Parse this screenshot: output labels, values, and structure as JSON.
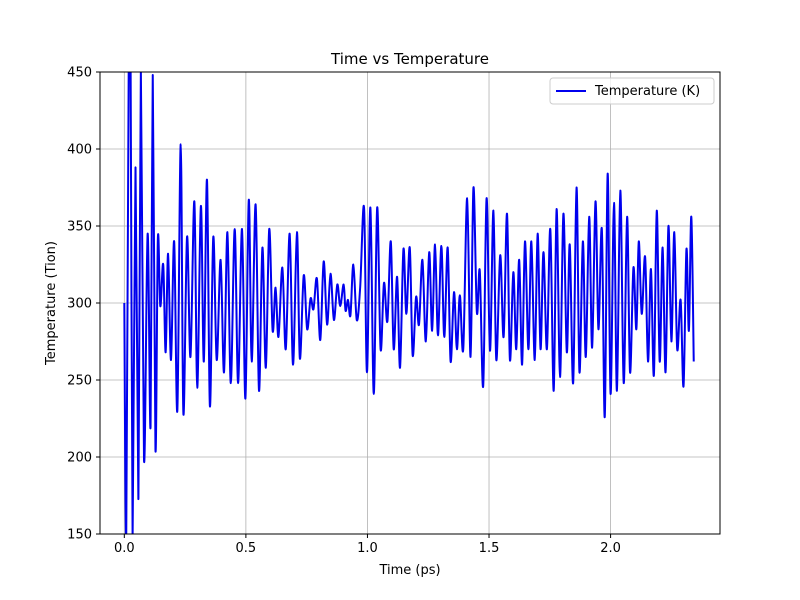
{
  "chart_data": {
    "type": "line",
    "title": "Time vs Temperature",
    "xlabel": "Time (ps)",
    "ylabel": "Temperature (Tion)",
    "xlim": [
      -0.1,
      2.45
    ],
    "ylim": [
      150,
      450
    ],
    "xticks": [
      0.0,
      0.5,
      1.0,
      1.5,
      2.0
    ],
    "xtick_labels": [
      "0.0",
      "0.5",
      "1.0",
      "1.5",
      "2.0"
    ],
    "yticks": [
      150,
      200,
      250,
      300,
      350,
      400,
      450
    ],
    "ytick_labels": [
      "150",
      "200",
      "250",
      "300",
      "350",
      "400",
      "450"
    ],
    "grid": true,
    "legend_position": "top-right",
    "series": [
      {
        "name": "Temperature (K)",
        "color": "#0000ee",
        "points": [
          [
            0.0,
            300
          ],
          [
            0.008,
            150
          ],
          [
            0.018,
            450
          ],
          [
            0.026,
            450
          ],
          [
            0.034,
            150
          ],
          [
            0.046,
            388
          ],
          [
            0.058,
            173
          ],
          [
            0.068,
            450
          ],
          [
            0.081,
            198
          ],
          [
            0.096,
            345
          ],
          [
            0.108,
            220
          ],
          [
            0.117,
            448
          ],
          [
            0.128,
            205
          ],
          [
            0.138,
            342
          ],
          [
            0.148,
            298
          ],
          [
            0.16,
            325
          ],
          [
            0.17,
            268
          ],
          [
            0.18,
            332
          ],
          [
            0.192,
            263
          ],
          [
            0.205,
            340
          ],
          [
            0.218,
            230
          ],
          [
            0.232,
            403
          ],
          [
            0.243,
            228
          ],
          [
            0.258,
            343
          ],
          [
            0.272,
            265
          ],
          [
            0.288,
            366
          ],
          [
            0.3,
            245
          ],
          [
            0.315,
            363
          ],
          [
            0.327,
            262
          ],
          [
            0.34,
            380
          ],
          [
            0.352,
            233
          ],
          [
            0.366,
            343
          ],
          [
            0.38,
            263
          ],
          [
            0.396,
            328
          ],
          [
            0.41,
            255
          ],
          [
            0.424,
            346
          ],
          [
            0.438,
            248
          ],
          [
            0.454,
            348
          ],
          [
            0.468,
            248
          ],
          [
            0.484,
            348
          ],
          [
            0.498,
            238
          ],
          [
            0.512,
            367
          ],
          [
            0.524,
            262
          ],
          [
            0.54,
            364
          ],
          [
            0.554,
            243
          ],
          [
            0.568,
            336
          ],
          [
            0.582,
            258
          ],
          [
            0.596,
            348
          ],
          [
            0.61,
            282
          ],
          [
            0.622,
            310
          ],
          [
            0.634,
            278
          ],
          [
            0.65,
            323
          ],
          [
            0.664,
            270
          ],
          [
            0.68,
            345
          ],
          [
            0.694,
            260
          ],
          [
            0.71,
            346
          ],
          [
            0.722,
            264
          ],
          [
            0.738,
            318
          ],
          [
            0.752,
            283
          ],
          [
            0.766,
            303
          ],
          [
            0.778,
            296
          ],
          [
            0.792,
            316
          ],
          [
            0.806,
            276
          ],
          [
            0.82,
            327
          ],
          [
            0.834,
            286
          ],
          [
            0.848,
            319
          ],
          [
            0.862,
            289
          ],
          [
            0.876,
            312
          ],
          [
            0.888,
            298
          ],
          [
            0.902,
            312
          ],
          [
            0.91,
            295
          ],
          [
            0.92,
            302
          ],
          [
            0.93,
            292
          ],
          [
            0.942,
            325
          ],
          [
            0.956,
            289
          ],
          [
            0.97,
            310
          ],
          [
            0.986,
            362
          ],
          [
            0.998,
            255
          ],
          [
            1.012,
            362
          ],
          [
            1.026,
            241
          ],
          [
            1.04,
            362
          ],
          [
            1.054,
            270
          ],
          [
            1.068,
            313
          ],
          [
            1.082,
            288
          ],
          [
            1.096,
            340
          ],
          [
            1.108,
            270
          ],
          [
            1.122,
            317
          ],
          [
            1.134,
            258
          ],
          [
            1.148,
            335
          ],
          [
            1.16,
            293
          ],
          [
            1.174,
            336
          ],
          [
            1.186,
            266
          ],
          [
            1.2,
            304
          ],
          [
            1.212,
            286
          ],
          [
            1.226,
            328
          ],
          [
            1.24,
            275
          ],
          [
            1.254,
            333
          ],
          [
            1.266,
            282
          ],
          [
            1.278,
            338
          ],
          [
            1.29,
            279
          ],
          [
            1.304,
            337
          ],
          [
            1.316,
            278
          ],
          [
            1.33,
            336
          ],
          [
            1.342,
            262
          ],
          [
            1.356,
            307
          ],
          [
            1.368,
            270
          ],
          [
            1.38,
            305
          ],
          [
            1.394,
            270
          ],
          [
            1.41,
            368
          ],
          [
            1.424,
            265
          ],
          [
            1.436,
            375
          ],
          [
            1.45,
            294
          ],
          [
            1.462,
            321
          ],
          [
            1.476,
            246
          ],
          [
            1.49,
            368
          ],
          [
            1.504,
            269
          ],
          [
            1.518,
            360
          ],
          [
            1.53,
            263
          ],
          [
            1.546,
            331
          ],
          [
            1.56,
            278
          ],
          [
            1.574,
            358
          ],
          [
            1.586,
            263
          ],
          [
            1.6,
            320
          ],
          [
            1.612,
            270
          ],
          [
            1.624,
            328
          ],
          [
            1.636,
            260
          ],
          [
            1.648,
            340
          ],
          [
            1.662,
            270
          ],
          [
            1.674,
            340
          ],
          [
            1.688,
            263
          ],
          [
            1.7,
            345
          ],
          [
            1.712,
            270
          ],
          [
            1.724,
            333
          ],
          [
            1.738,
            270
          ],
          [
            1.752,
            348
          ],
          [
            1.766,
            243
          ],
          [
            1.778,
            361
          ],
          [
            1.792,
            252
          ],
          [
            1.806,
            358
          ],
          [
            1.82,
            268
          ],
          [
            1.832,
            338
          ],
          [
            1.846,
            248
          ],
          [
            1.86,
            375
          ],
          [
            1.872,
            255
          ],
          [
            1.886,
            340
          ],
          [
            1.898,
            265
          ],
          [
            1.912,
            356
          ],
          [
            1.924,
            271
          ],
          [
            1.938,
            366
          ],
          [
            1.95,
            283
          ],
          [
            1.964,
            348
          ],
          [
            1.976,
            226
          ],
          [
            1.988,
            384
          ],
          [
            2.0,
            241
          ],
          [
            2.014,
            365
          ],
          [
            2.026,
            243
          ],
          [
            2.04,
            373
          ],
          [
            2.054,
            248
          ],
          [
            2.068,
            356
          ],
          [
            2.08,
            255
          ],
          [
            2.094,
            323
          ],
          [
            2.106,
            283
          ],
          [
            2.116,
            340
          ],
          [
            2.128,
            293
          ],
          [
            2.142,
            330
          ],
          [
            2.154,
            262
          ],
          [
            2.166,
            322
          ],
          [
            2.178,
            253
          ],
          [
            2.19,
            360
          ],
          [
            2.202,
            262
          ],
          [
            2.214,
            336
          ],
          [
            2.226,
            255
          ],
          [
            2.238,
            350
          ],
          [
            2.25,
            275
          ],
          [
            2.262,
            346
          ],
          [
            2.274,
            270
          ],
          [
            2.288,
            302
          ],
          [
            2.3,
            246
          ],
          [
            2.312,
            335
          ],
          [
            2.322,
            282
          ],
          [
            2.332,
            356
          ],
          [
            2.342,
            262
          ]
        ]
      }
    ]
  }
}
